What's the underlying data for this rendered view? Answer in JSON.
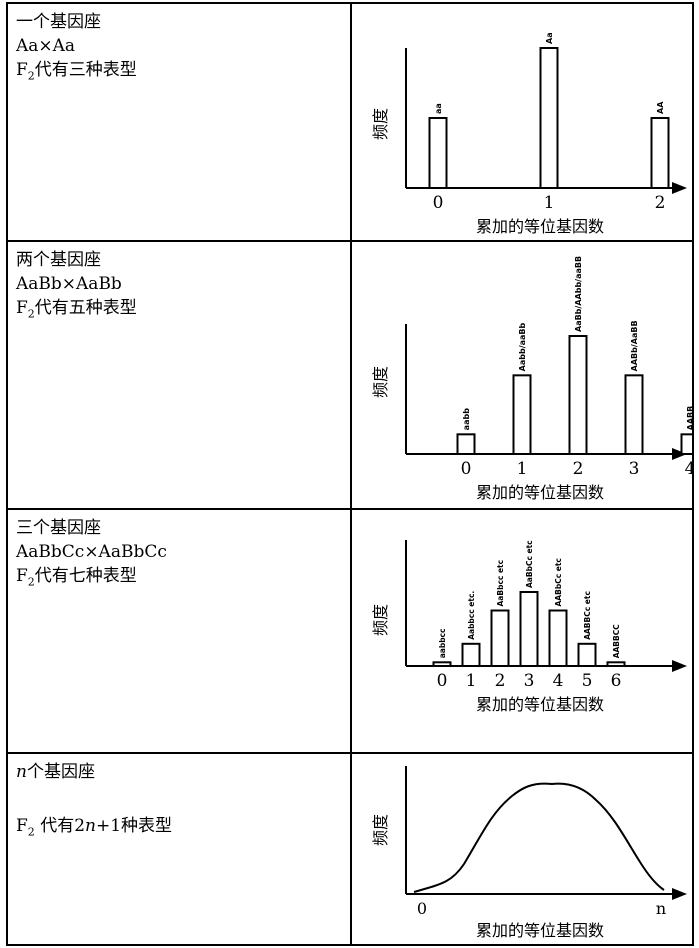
{
  "rows": [
    {
      "title": "一个基因座",
      "cross": "Aa×Aa",
      "pheno_prefix": "F",
      "pheno_sub": "2",
      "pheno_suffix": "代有三种表型",
      "chart_data": {
        "type": "bar",
        "categories": [
          "0",
          "1",
          "2"
        ],
        "genotype_labels": [
          "aa",
          "Aa",
          "AA"
        ],
        "values": [
          1,
          2,
          1
        ],
        "ylabel": "频度",
        "xlabel": "累加的等位基因数"
      }
    },
    {
      "title": "两个基因座",
      "cross": "AaBb×AaBb",
      "pheno_prefix": "F",
      "pheno_sub": "2",
      "pheno_suffix": "代有五种表型",
      "chart_data": {
        "type": "bar",
        "categories": [
          "0",
          "1",
          "2",
          "3",
          "4"
        ],
        "genotype_labels": [
          "aabb",
          "Aabb/aaBb",
          "AaBb/AAbb/aaBB",
          "AABb/AaBB",
          "AABB"
        ],
        "values": [
          1,
          4,
          6,
          4,
          1
        ],
        "ylabel": "频度",
        "xlabel": "累加的等位基因数"
      }
    },
    {
      "title": "三个基因座",
      "cross": "AaBbCc×AaBbCc",
      "pheno_prefix": "F",
      "pheno_sub": "2",
      "pheno_suffix": "代有七种表型",
      "chart_data": {
        "type": "bar",
        "categories": [
          "0",
          "1",
          "2",
          "3",
          "4",
          "5",
          "6"
        ],
        "genotype_labels": [
          "aabbcc",
          "Aabbcc etc.",
          "AaBbcc etc",
          "AaBbCc etc",
          "AABbCc etc",
          "AABBCc etc",
          "AABBCC"
        ],
        "values": [
          1,
          6,
          15,
          20,
          15,
          6,
          1
        ],
        "ylabel": "频度",
        "xlabel": "累加的等位基因数"
      }
    },
    {
      "title_var": "n",
      "title": "个基因座",
      "pheno_prefix": "F",
      "pheno_sub": "2",
      "pheno_mid": " 代有2",
      "pheno_var": "n",
      "pheno_suffix": "+1种表型",
      "chart_data": {
        "type": "line",
        "x_labels": [
          "0",
          "n"
        ],
        "ylabel": "频度",
        "xlabel": "累加的等位基因数"
      }
    }
  ]
}
